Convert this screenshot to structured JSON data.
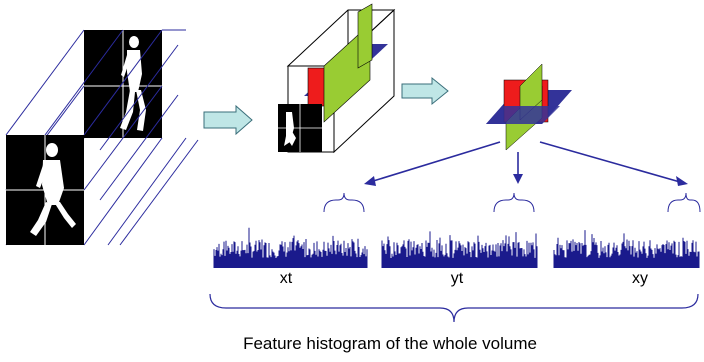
{
  "labels": {
    "xt": "xt",
    "yt": "yt",
    "xy": "xy"
  },
  "caption": "Feature histogram of the whole volume",
  "colors": {
    "frame_outline": "#2b2b9e",
    "arrow_fill": "#bfe6e6",
    "arrow_stroke": "#3a6e7a",
    "plane_red": "#ee1c1c",
    "plane_green": "#99cc33",
    "plane_blue": "#333399",
    "histogram": "#1a1a8c",
    "pointer": "#2b2b9e"
  },
  "icons": [
    "walking-person-silhouette",
    "right-arrow-icon",
    "down-arrow-icon",
    "curly-brace"
  ]
}
